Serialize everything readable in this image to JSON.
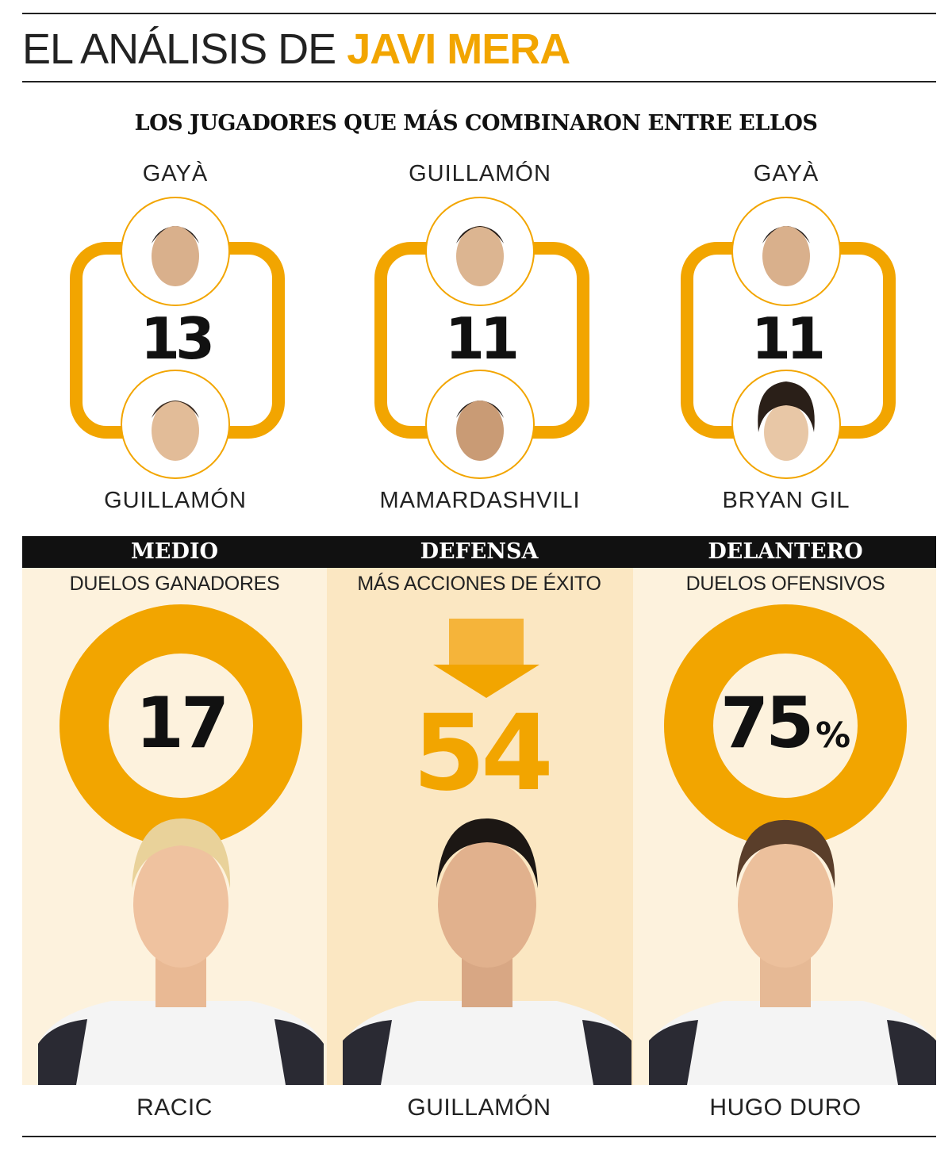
{
  "header": {
    "title_prefix": "EL ANÁLISIS DE",
    "title_author": "JAVI MERA"
  },
  "section_title": "LOS JUGADORES QUE MÁS COMBINARON ENTRE ELLOS",
  "pairs": [
    {
      "player_a": "GAYÀ",
      "player_b": "GUILLAMÓN",
      "combinations": "13"
    },
    {
      "player_a": "GUILLAMÓN",
      "player_b": "MAMARDASHVILI",
      "combinations": "11"
    },
    {
      "player_a": "GAYÀ",
      "player_b": "BRYAN GIL",
      "combinations": "11"
    }
  ],
  "categories": [
    {
      "label": "MEDIO",
      "metric": "DUELOS GANADORES",
      "value": "17",
      "player": "RACIC"
    },
    {
      "label": "DEFENSA",
      "metric": "MÁS ACCIONES DE ÉXITO",
      "value": "54",
      "player": "GUILLAMÓN"
    },
    {
      "label": "DELANTERO",
      "metric": "DUELOS OFENSIVOS",
      "value": "75",
      "unit": "%",
      "player": "HUGO DURO"
    }
  ],
  "colors": {
    "accent": "#f2a500",
    "dark": "#111111",
    "panel_light": "#fdf2dd",
    "panel_mid": "#fbe7c2"
  }
}
